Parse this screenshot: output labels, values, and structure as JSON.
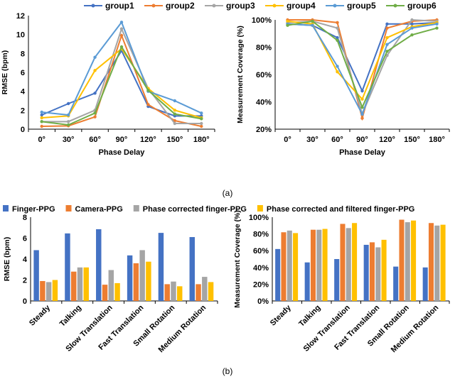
{
  "colors": {
    "group1": "#4472C4",
    "group2": "#ED7D31",
    "group3": "#A5A5A5",
    "group4": "#FFC000",
    "group5": "#5B9BD5",
    "group6": "#70AD47"
  },
  "captions": {
    "a": "(a)",
    "b": "(b)"
  },
  "chart_data": [
    {
      "type": "line",
      "xlabel": "Phase Delay",
      "ylabel": "RMSE (bpm)",
      "categories": [
        "0°",
        "30°",
        "60°",
        "90°",
        "120°",
        "150°",
        "180°"
      ],
      "ylim": [
        0,
        12
      ],
      "yticks": [
        0,
        2,
        4,
        6,
        8,
        10,
        12
      ],
      "grid": false,
      "legend": "top",
      "series": [
        {
          "name": "group1",
          "values": [
            1.5,
            2.7,
            3.8,
            8.3,
            2.4,
            1.4,
            1.4
          ]
        },
        {
          "name": "group2",
          "values": [
            0.3,
            0.35,
            1.3,
            9.9,
            2.6,
            0.9,
            0.3
          ]
        },
        {
          "name": "group3",
          "values": [
            0.8,
            0.8,
            2.0,
            10.6,
            4.3,
            0.6,
            0.6
          ]
        },
        {
          "name": "group4",
          "values": [
            1.2,
            1.4,
            6.2,
            8.5,
            4.3,
            2.0,
            1.2
          ]
        },
        {
          "name": "group5",
          "values": [
            1.8,
            1.5,
            7.6,
            11.3,
            4.0,
            3.0,
            1.7
          ]
        },
        {
          "name": "group6",
          "values": [
            0.8,
            0.45,
            1.7,
            8.7,
            4.1,
            1.6,
            1.1
          ]
        }
      ]
    },
    {
      "type": "line",
      "xlabel": "Phase Delay",
      "ylabel": "Measurement Coverage (%)",
      "categories": [
        "0°",
        "30°",
        "60°",
        "90°",
        "120°",
        "150°",
        "180°"
      ],
      "ylim": [
        20,
        100
      ],
      "yticks": [
        20,
        40,
        60,
        80,
        100
      ],
      "yformat": "percent",
      "grid": false,
      "series": [
        {
          "name": "group1",
          "values": [
            97,
            96,
            87,
            48,
            97,
            97,
            98
          ]
        },
        {
          "name": "group2",
          "values": [
            100,
            100,
            98,
            28,
            94,
            99,
            100
          ]
        },
        {
          "name": "group3",
          "values": [
            98,
            99,
            94,
            31,
            74,
            100,
            99
          ]
        },
        {
          "name": "group4",
          "values": [
            99,
            97,
            62,
            42,
            87,
            95,
            98
          ]
        },
        {
          "name": "group5",
          "values": [
            97,
            96,
            66,
            31,
            82,
            94,
            97
          ]
        },
        {
          "name": "group6",
          "values": [
            96,
            99,
            85,
            36,
            77,
            89,
            94
          ]
        }
      ]
    },
    {
      "type": "bar",
      "xlabel": "",
      "ylabel": "RMSE (bpm)",
      "categories": [
        "Steady",
        "Talking",
        "Slow Translation",
        "Fast Translation",
        "Small Rotation",
        "Medium Rotation"
      ],
      "ylim": [
        0,
        8
      ],
      "yticks": [
        0,
        2,
        4,
        6,
        8
      ],
      "grid": false,
      "legend": "top",
      "series": [
        {
          "name": "Finger-PPG",
          "values": [
            4.85,
            6.45,
            6.85,
            4.35,
            6.5,
            6.1
          ]
        },
        {
          "name": "Camera-PPG",
          "values": [
            1.9,
            2.8,
            1.55,
            3.6,
            1.6,
            1.6
          ]
        },
        {
          "name": "Phase corrected finger-PPG",
          "values": [
            1.8,
            3.2,
            2.95,
            4.85,
            1.85,
            2.3
          ]
        },
        {
          "name": "Phase corrected and filtered finger-PPG",
          "values": [
            2.0,
            3.2,
            1.7,
            3.75,
            1.4,
            1.8
          ]
        }
      ]
    },
    {
      "type": "bar",
      "xlabel": "",
      "ylabel": "Measurement Coverage (%)",
      "categories": [
        "Steady",
        "Talking",
        "Slow Translation",
        "Fast Translation",
        "Small Rotation",
        "Medium Rotation"
      ],
      "ylim": [
        0,
        100
      ],
      "yticks": [
        0,
        20,
        40,
        60,
        80,
        100
      ],
      "yformat": "percent",
      "grid": false,
      "series": [
        {
          "name": "Finger-PPG",
          "values": [
            62,
            46,
            50,
            67,
            41,
            40
          ]
        },
        {
          "name": "Camera-PPG",
          "values": [
            82,
            85,
            92,
            70,
            97,
            93
          ]
        },
        {
          "name": "Phase corrected finger-PPG",
          "values": [
            84,
            85,
            87,
            64,
            94,
            90
          ]
        },
        {
          "name": "Phase corrected and filtered finger-PPG",
          "values": [
            81,
            86,
            93,
            73,
            96,
            91
          ]
        }
      ]
    }
  ],
  "bar_colors": [
    "#4472C4",
    "#ED7D31",
    "#A5A5A5",
    "#FFC000"
  ]
}
